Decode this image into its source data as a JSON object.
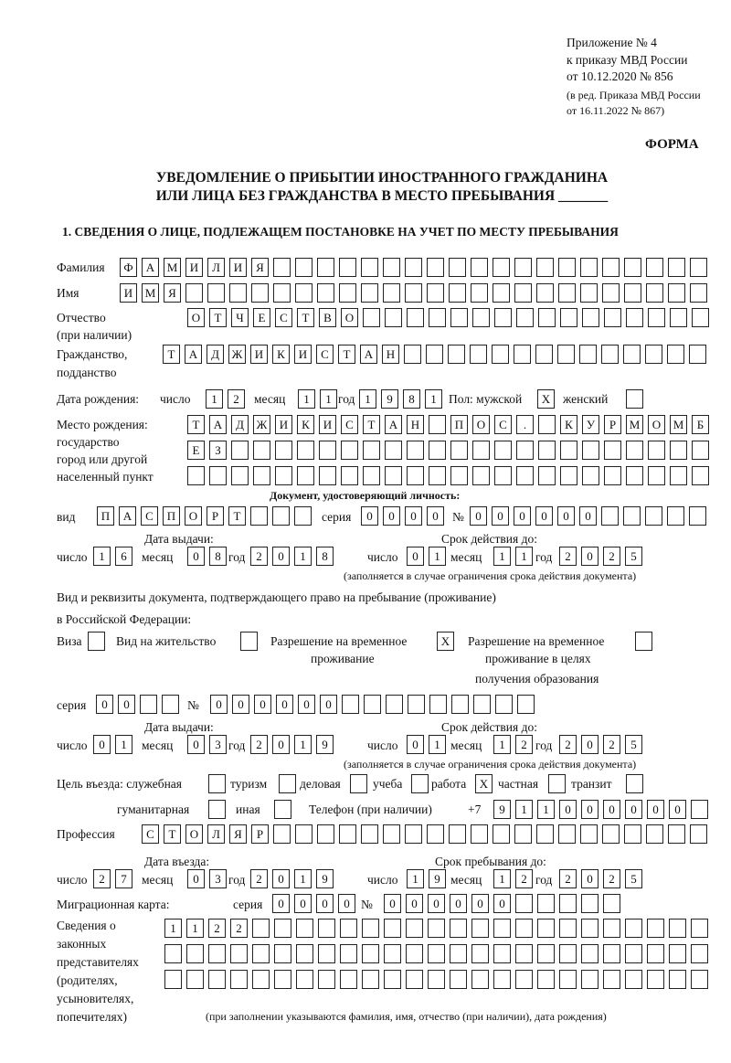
{
  "header": {
    "appendix": "Приложение № 4",
    "order": "к приказу МВД России",
    "order_date": "от 10.12.2020 № 856",
    "edition1": "(в ред. Приказа МВД России",
    "edition2": "от 16.11.2022 № 867)",
    "form": "ФОРМА"
  },
  "title": {
    "line1": "УВЕДОМЛЕНИЕ О ПРИБЫТИИ ИНОСТРАННОГО ГРАЖДАНИНА",
    "line2": "ИЛИ ЛИЦА БЕЗ ГРАЖДАНСТВА В МЕСТО ПРЕБЫВАНИЯ _______"
  },
  "section1": "1. СВЕДЕНИЯ О ЛИЦЕ, ПОДЛЕЖАЩЕМ ПОСТАНОВКЕ НА УЧЕТ ПО МЕСТУ ПРЕБЫВАНИЯ",
  "labels": {
    "surname": "Фамилия",
    "name": "Имя",
    "patronymic": "Отчество",
    "patronymic2": "(при наличии)",
    "citizenship": "Гражданство,",
    "citizenship2": "подданство",
    "birth_date": "Дата рождения:",
    "day": "число",
    "month": "месяц",
    "year": "год",
    "sex": "Пол: мужской",
    "female": "женский",
    "birthplace1": "Место рождения:",
    "birthplace2": "государство",
    "birthplace3": "город или другой",
    "birthplace4": "населенный пункт",
    "id_doc": "Документ, удостоверяющий личность:",
    "kind": "вид",
    "series": "серия",
    "number": "№",
    "issue_date": "Дата выдачи:",
    "valid_until": "Срок действия до:",
    "valid_note": "(заполняется в случае ограничения срока действия документа)",
    "right_doc1": "Вид и реквизиты документа, подтверждающего право на пребывание (проживание)",
    "right_doc2": "в Российской Федерации:",
    "visa": "Виза",
    "residence": "Вид на жительство",
    "temp1": "Разрешение на временное",
    "temp2": "проживание",
    "edu1": "Разрешение на временное",
    "edu2": "проживание в целях",
    "edu3": "получения образования",
    "purpose": "Цель въезда: служебная",
    "tourism": "туризм",
    "business": "деловая",
    "study": "учеба",
    "work": "работа",
    "private": "частная",
    "transit": "транзит",
    "humanitarian": "гуманитарная",
    "other": "иная",
    "phone": "Телефон (при наличии)",
    "phone_prefix": "+7",
    "profession": "Профессия",
    "entry_date": "Дата въезда:",
    "stay_until": "Срок пребывания до:",
    "migration_card": "Миграционная карта:",
    "rep1": "Сведения о",
    "rep2": "законных",
    "rep3": "представителях",
    "rep4": "(родителях,",
    "rep5": "усыновителях,",
    "rep6": "попечителях)",
    "rep_note": "(при заполнении указываются фамилия, имя, отчество (при наличии), дата рождения)"
  },
  "values": {
    "surname": "ФАМИЛИЯ",
    "name": "ИМЯ",
    "patronymic": "ОТЧЕСТВО",
    "citizenship": "ТАДЖИКИСТАН",
    "birth_day": "12",
    "birth_month": "11",
    "birth_year": "1981",
    "sex_male": "X",
    "sex_female": "",
    "birthplace1": "ТАДЖИКИСТАН ПОС. КУРМОМБ",
    "birthplace2": "ЕЗ",
    "birthplace3": "",
    "doc_kind": "ПАСПОРТ",
    "doc_series": "0000",
    "doc_number": "000000",
    "doc_issue_day": "16",
    "doc_issue_month": "08",
    "doc_issue_year": "2018",
    "doc_valid_day": "01",
    "doc_valid_month": "11",
    "doc_valid_year": "2025",
    "visa": "",
    "residence": "",
    "temp_residence": "X",
    "temp_edu": "",
    "right_series": "00",
    "right_number": "000000",
    "right_issue_day": "01",
    "right_issue_month": "03",
    "right_issue_year": "2019",
    "right_valid_day": "01",
    "right_valid_month": "12",
    "right_valid_year": "2025",
    "p_service": "",
    "p_tourism": "",
    "p_business": "",
    "p_study": "",
    "p_work": "X",
    "p_private": "",
    "p_transit": "",
    "p_humanitarian": "",
    "p_other": "",
    "phone": "911000000",
    "profession": "СТОЛЯР",
    "entry_day": "27",
    "entry_month": "03",
    "entry_year": "2019",
    "stay_day": "19",
    "stay_month": "12",
    "stay_year": "2025",
    "mc_series": "0000",
    "mc_number": "000000",
    "rep1": "1122",
    "rep2": "",
    "rep3": ""
  }
}
